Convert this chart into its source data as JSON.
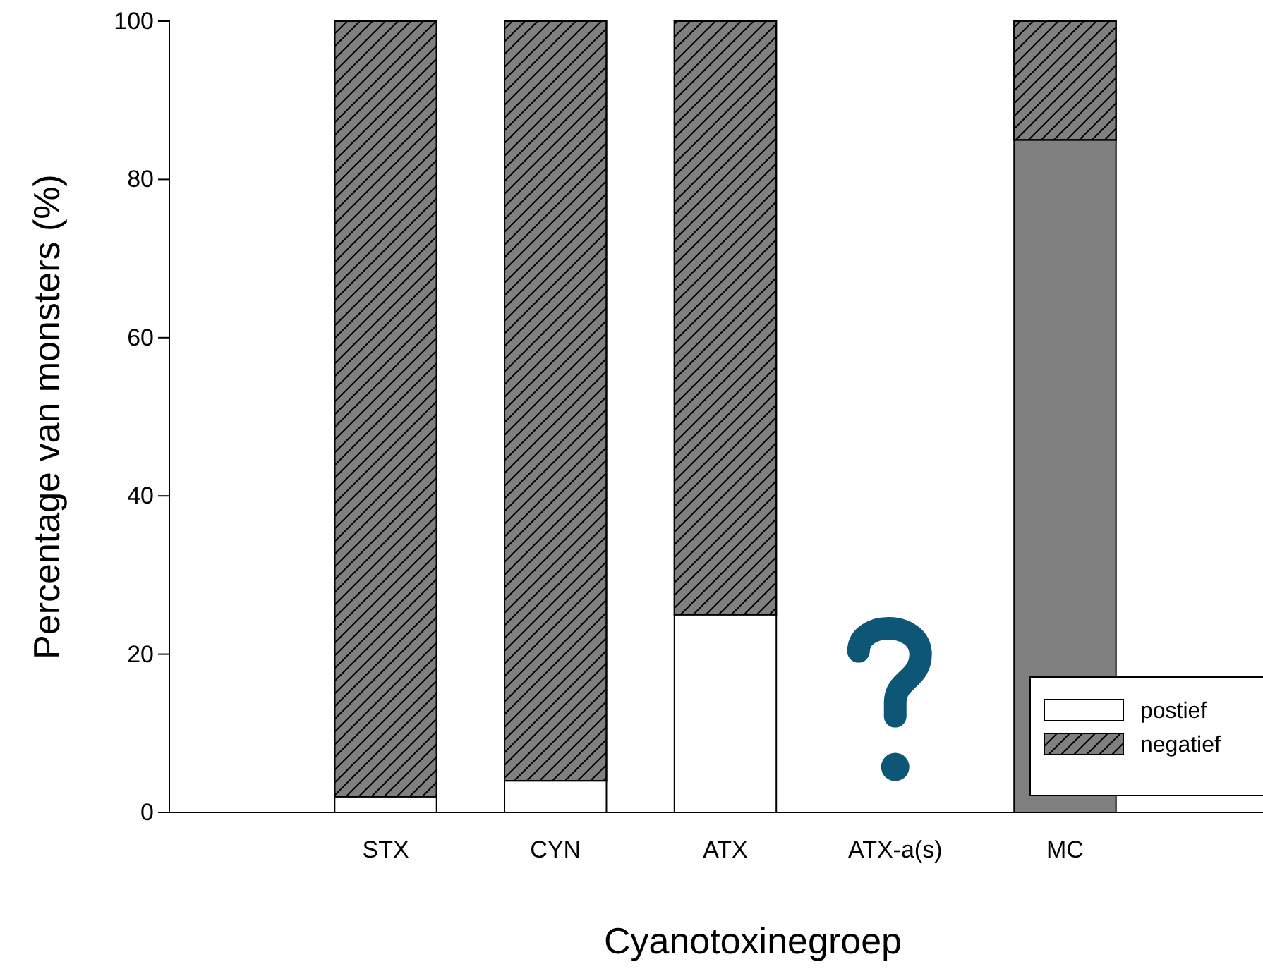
{
  "chart_data": {
    "type": "bar",
    "stacked": true,
    "xlabel": "Cyanotoxinegroep",
    "ylabel": "Percentage van monsters (%)",
    "categories": [
      "STX",
      "CYN",
      "ATX",
      "ATX-a(s)",
      "MC"
    ],
    "series": [
      {
        "name": "postief",
        "color": "#ffffff",
        "colors": [
          "#ffffff",
          "#ffffff",
          "#ffffff",
          null,
          "#808080"
        ],
        "values": [
          2,
          4,
          25,
          null,
          85
        ]
      },
      {
        "name": "negatief",
        "color": "#808080",
        "values": [
          98,
          96,
          75,
          null,
          15
        ]
      }
    ],
    "ylim": [
      0,
      100
    ],
    "yticks": [
      0,
      20,
      40,
      60,
      80,
      100
    ],
    "legend": "bottom right",
    "grid": false
  }
}
